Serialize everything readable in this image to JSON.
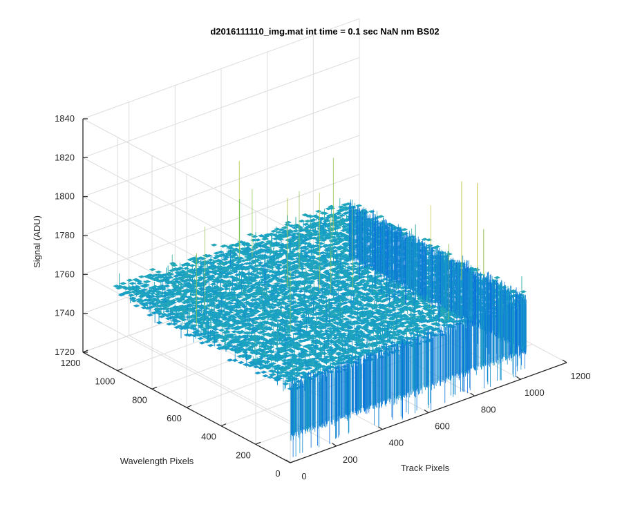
{
  "chart_data": {
    "type": "surface",
    "title": "d2016111110_img.mat int time = 0.1 sec  NaN nm BS02",
    "xlabel": "Track Pixels",
    "ylabel": "Wavelength Pixels",
    "zlabel": "Signal (ADU)",
    "xlim": [
      0,
      1200
    ],
    "ylim": [
      0,
      1200
    ],
    "zlim": [
      1720,
      1840
    ],
    "x_ticks": [
      "0",
      "200",
      "400",
      "600",
      "800",
      "1000",
      "1200"
    ],
    "y_ticks": [
      "0",
      "200",
      "400",
      "600",
      "800",
      "1000",
      "1200"
    ],
    "z_ticks": [
      "1720",
      "1740",
      "1760",
      "1780",
      "1800",
      "1820",
      "1840"
    ],
    "grid": true,
    "colormap": "parula",
    "surface": {
      "x_extent": [
        0,
        1024
      ],
      "y_extent": [
        0,
        1024
      ],
      "mean_signal": 1760,
      "typical_range": [
        1735,
        1790
      ],
      "max_peak": 1815
    },
    "colors": {
      "low": "#0a6fdc",
      "mid": "#1aa3c2",
      "high": "#6fc06a",
      "peak": "#c8c83a",
      "axis": "#262626",
      "grid": "#dcdcdc"
    }
  }
}
